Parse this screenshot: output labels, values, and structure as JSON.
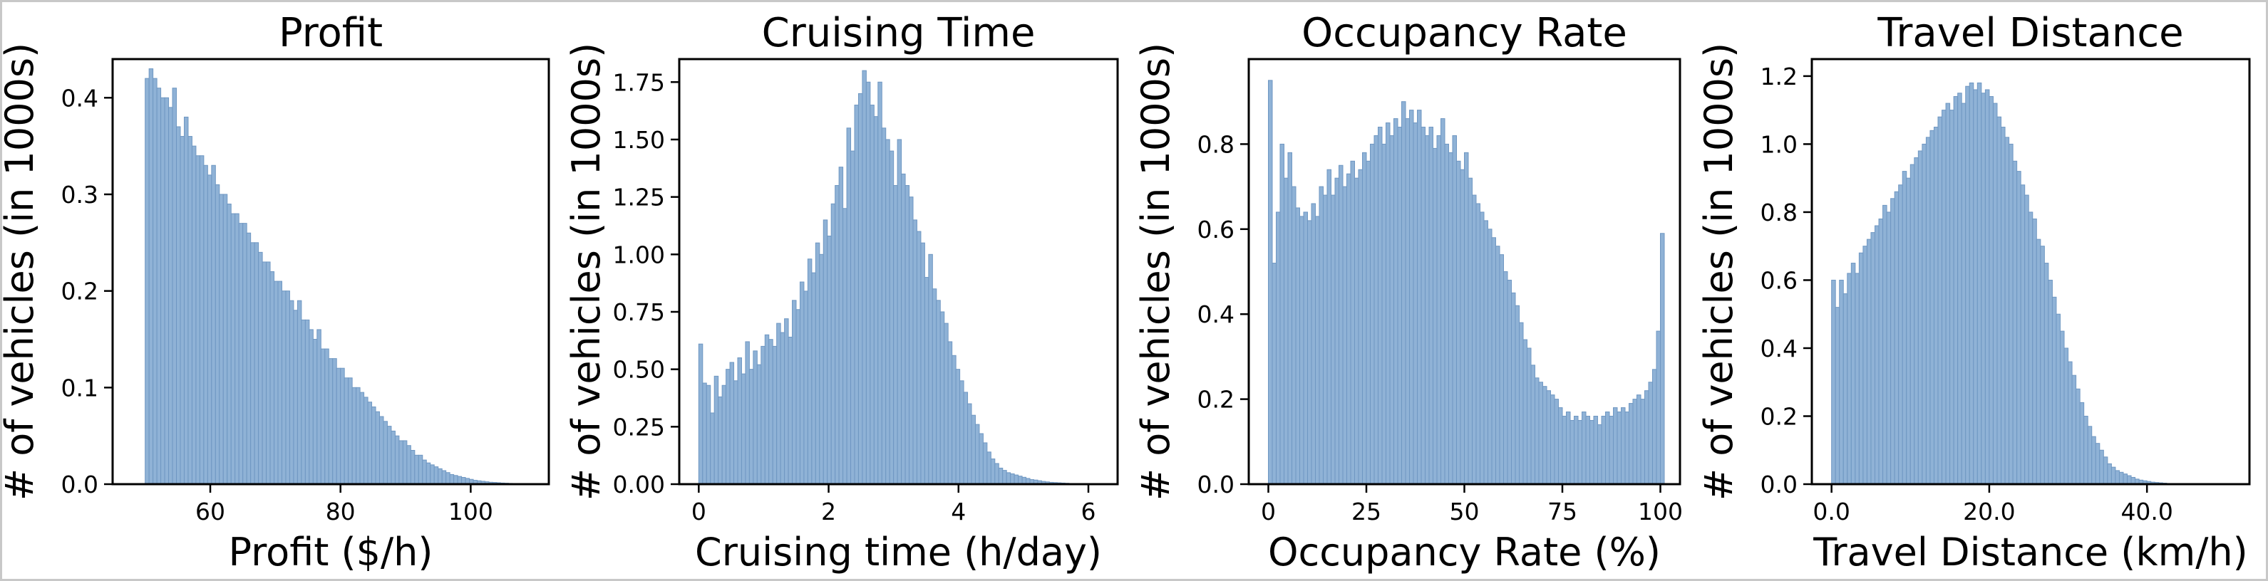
{
  "chart_data": [
    {
      "type": "bar",
      "title": "Profit",
      "xlabel": "Profit ($/h)",
      "ylabel": "# of vehicles (in 1000s)",
      "xlim": [
        45,
        112
      ],
      "ylim": [
        0,
        0.44
      ],
      "xticks": [
        60,
        80,
        100
      ],
      "xtick_labels": [
        "60",
        "80",
        "100"
      ],
      "yticks": [
        0.0,
        0.1,
        0.2,
        0.3,
        0.4
      ],
      "ytick_labels": [
        "0.0",
        "0.1",
        "0.2",
        "0.3",
        "0.4"
      ],
      "bin_start": 50,
      "bin_width": 0.6,
      "values": [
        0.42,
        0.43,
        0.42,
        0.41,
        0.4,
        0.4,
        0.39,
        0.41,
        0.37,
        0.36,
        0.38,
        0.36,
        0.35,
        0.34,
        0.34,
        0.33,
        0.32,
        0.33,
        0.31,
        0.3,
        0.3,
        0.29,
        0.28,
        0.28,
        0.27,
        0.27,
        0.26,
        0.25,
        0.25,
        0.24,
        0.23,
        0.23,
        0.22,
        0.21,
        0.21,
        0.2,
        0.2,
        0.19,
        0.18,
        0.19,
        0.17,
        0.17,
        0.16,
        0.15,
        0.16,
        0.14,
        0.14,
        0.13,
        0.13,
        0.12,
        0.12,
        0.11,
        0.11,
        0.1,
        0.1,
        0.095,
        0.09,
        0.085,
        0.08,
        0.075,
        0.07,
        0.065,
        0.06,
        0.055,
        0.05,
        0.045,
        0.045,
        0.04,
        0.035,
        0.03,
        0.03,
        0.025,
        0.022,
        0.02,
        0.018,
        0.016,
        0.014,
        0.012,
        0.01,
        0.009,
        0.008,
        0.007,
        0.006,
        0.005,
        0.004,
        0.0035,
        0.003,
        0.0025,
        0.002,
        0.0018,
        0.0015,
        0.0012,
        0.001,
        0.0008,
        0.0007,
        0.0006,
        0.0005,
        0.0004,
        0.0003,
        0.0002
      ]
    },
    {
      "type": "bar",
      "title": "Cruising Time",
      "xlabel": "Cruising time (h/day)",
      "ylabel": "# of vehicles (in 1000s)",
      "xlim": [
        -0.3,
        6.45
      ],
      "ylim": [
        0,
        1.85
      ],
      "xticks": [
        0,
        2,
        4,
        6
      ],
      "xtick_labels": [
        "0",
        "2",
        "4",
        "6"
      ],
      "yticks": [
        0.0,
        0.25,
        0.5,
        0.75,
        1.0,
        1.25,
        1.5,
        1.75
      ],
      "ytick_labels": [
        "0.00",
        "0.25",
        "0.50",
        "0.75",
        "1.00",
        "1.25",
        "1.50",
        "1.75"
      ],
      "bin_start": 0,
      "bin_width": 0.06,
      "values": [
        0.61,
        0.44,
        0.43,
        0.31,
        0.47,
        0.38,
        0.43,
        0.5,
        0.53,
        0.45,
        0.55,
        0.48,
        0.62,
        0.5,
        0.58,
        0.52,
        0.6,
        0.65,
        0.63,
        0.6,
        0.7,
        0.66,
        0.72,
        0.64,
        0.8,
        0.76,
        0.88,
        0.84,
        0.98,
        0.92,
        1.05,
        1.0,
        1.15,
        1.08,
        1.22,
        1.3,
        1.38,
        1.2,
        1.55,
        1.45,
        1.65,
        1.7,
        1.8,
        1.75,
        1.65,
        1.6,
        1.75,
        1.55,
        1.5,
        1.45,
        1.3,
        1.5,
        1.35,
        1.3,
        1.25,
        1.15,
        1.1,
        1.05,
        0.9,
        1.0,
        0.85,
        0.8,
        0.75,
        0.7,
        0.62,
        0.56,
        0.5,
        0.45,
        0.4,
        0.35,
        0.3,
        0.26,
        0.22,
        0.18,
        0.14,
        0.11,
        0.09,
        0.07,
        0.06,
        0.05,
        0.045,
        0.04,
        0.035,
        0.03,
        0.025,
        0.02,
        0.018,
        0.015,
        0.012,
        0.01,
        0.008,
        0.007,
        0.006,
        0.005,
        0.004,
        0.003,
        0.002,
        0.002,
        0.001,
        0.001
      ]
    },
    {
      "type": "bar",
      "title": "Occupancy Rate",
      "xlabel": "Occupancy Rate (%)",
      "ylabel": "# of vehicles (in 1000s)",
      "xlim": [
        -5,
        105
      ],
      "ylim": [
        0,
        1.0
      ],
      "xticks": [
        0,
        25,
        50,
        75,
        100
      ],
      "xtick_labels": [
        "0",
        "25",
        "50",
        "75",
        "100"
      ],
      "yticks": [
        0.0,
        0.2,
        0.4,
        0.6,
        0.8
      ],
      "ytick_labels": [
        "0.0",
        "0.2",
        "0.4",
        "0.6",
        "0.8"
      ],
      "bin_start": 0,
      "bin_width": 1,
      "values": [
        0.95,
        0.52,
        0.64,
        0.8,
        0.72,
        0.78,
        0.7,
        0.65,
        0.63,
        0.64,
        0.62,
        0.66,
        0.63,
        0.7,
        0.68,
        0.74,
        0.68,
        0.72,
        0.75,
        0.7,
        0.73,
        0.76,
        0.72,
        0.74,
        0.78,
        0.76,
        0.8,
        0.82,
        0.84,
        0.8,
        0.85,
        0.82,
        0.86,
        0.84,
        0.9,
        0.86,
        0.88,
        0.85,
        0.88,
        0.84,
        0.82,
        0.84,
        0.79,
        0.82,
        0.86,
        0.8,
        0.78,
        0.82,
        0.76,
        0.74,
        0.78,
        0.72,
        0.68,
        0.66,
        0.64,
        0.62,
        0.6,
        0.58,
        0.56,
        0.54,
        0.5,
        0.48,
        0.45,
        0.42,
        0.38,
        0.34,
        0.32,
        0.28,
        0.25,
        0.24,
        0.23,
        0.22,
        0.21,
        0.2,
        0.18,
        0.16,
        0.17,
        0.15,
        0.16,
        0.15,
        0.17,
        0.16,
        0.15,
        0.16,
        0.14,
        0.16,
        0.17,
        0.16,
        0.18,
        0.17,
        0.18,
        0.17,
        0.19,
        0.2,
        0.21,
        0.2,
        0.22,
        0.24,
        0.27,
        0.36,
        0.59
      ]
    },
    {
      "type": "bar",
      "title": "Travel Distance",
      "xlabel": "Travel Distance (km/h)",
      "ylabel": "# of vehicles (in 1000s)",
      "xlim": [
        -2.5,
        53
      ],
      "ylim": [
        0,
        1.25
      ],
      "xticks": [
        0,
        20,
        40
      ],
      "xtick_labels": [
        "0.0",
        "20.0",
        "40.0"
      ],
      "yticks": [
        0.0,
        0.2,
        0.4,
        0.6,
        0.8,
        1.0,
        1.2
      ],
      "ytick_labels": [
        "0.0",
        "0.2",
        "0.4",
        "0.6",
        "0.8",
        "1.0",
        "1.2"
      ],
      "bin_start": 0,
      "bin_width": 0.5,
      "values": [
        0.6,
        0.52,
        0.6,
        0.56,
        0.62,
        0.65,
        0.62,
        0.68,
        0.7,
        0.72,
        0.74,
        0.76,
        0.78,
        0.82,
        0.8,
        0.84,
        0.86,
        0.88,
        0.92,
        0.9,
        0.94,
        0.96,
        0.98,
        1.0,
        1.02,
        1.04,
        1.05,
        1.08,
        1.1,
        1.12,
        1.1,
        1.14,
        1.15,
        1.12,
        1.17,
        1.18,
        1.16,
        1.18,
        1.15,
        1.16,
        1.14,
        1.12,
        1.08,
        1.05,
        1.02,
        1.0,
        0.95,
        0.92,
        0.88,
        0.85,
        0.8,
        0.78,
        0.72,
        0.7,
        0.65,
        0.6,
        0.55,
        0.5,
        0.45,
        0.4,
        0.36,
        0.32,
        0.28,
        0.24,
        0.2,
        0.17,
        0.14,
        0.12,
        0.1,
        0.08,
        0.06,
        0.05,
        0.04,
        0.035,
        0.03,
        0.025,
        0.02,
        0.015,
        0.012,
        0.01,
        0.008,
        0.006,
        0.005,
        0.004,
        0.003,
        0.002,
        0.002,
        0.001,
        0.001,
        0.001
      ]
    }
  ]
}
